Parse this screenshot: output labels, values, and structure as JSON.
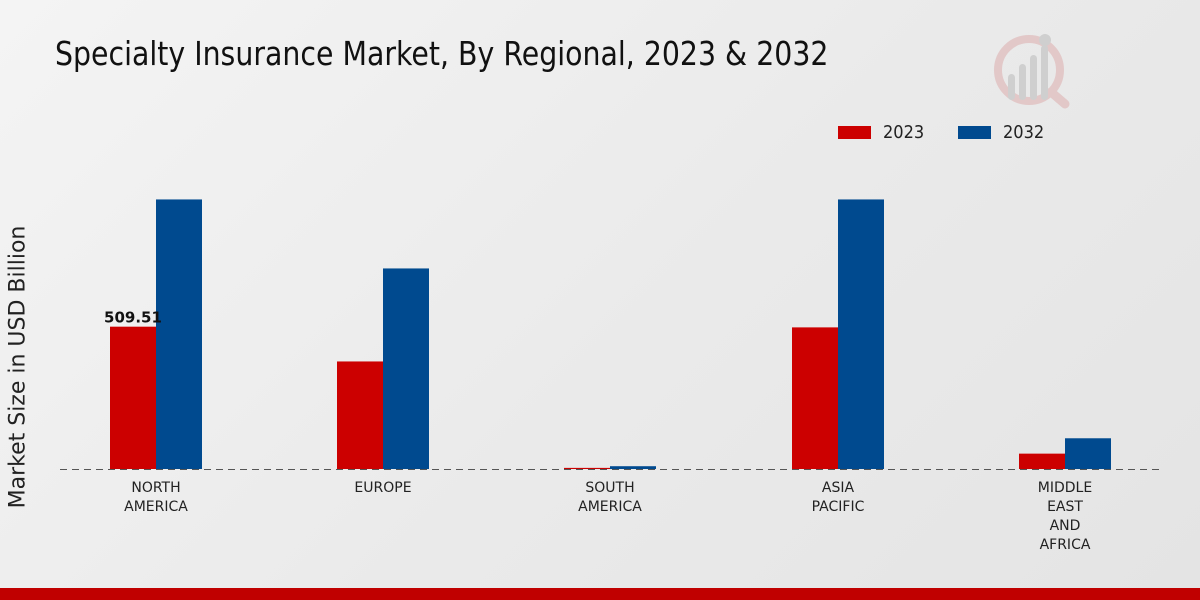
{
  "chart_data": {
    "type": "bar",
    "title": "Specialty Insurance Market, By Regional, 2023 & 2032",
    "xlabel": "",
    "ylabel": "Market Size in USD Billion",
    "categories": [
      [
        "NORTH",
        "AMERICA"
      ],
      [
        "EUROPE"
      ],
      [
        "SOUTH",
        "AMERICA"
      ],
      [
        "ASIA",
        "PACIFIC"
      ],
      [
        "MIDDLE",
        "EAST",
        "AND",
        "AFRICA"
      ]
    ],
    "series": [
      {
        "name": "2023",
        "color": "#cc0000",
        "values": [
          509.51,
          385,
          4,
          507,
          55
        ]
      },
      {
        "name": "2032",
        "color": "#004a8f",
        "values": [
          965,
          718,
          10,
          965,
          110
        ]
      }
    ],
    "data_labels": [
      {
        "series": 0,
        "index": 0,
        "text": "509.51"
      }
    ],
    "ylim": [
      0,
      1500
    ],
    "legend_position": "top-right",
    "grid": false,
    "baseline": "dashed"
  },
  "colors": {
    "accent": "#cc0000",
    "secondary": "#004a8f",
    "logo": "#c0c0c0"
  },
  "logo": {
    "icon": "analytics-logo-icon"
  }
}
